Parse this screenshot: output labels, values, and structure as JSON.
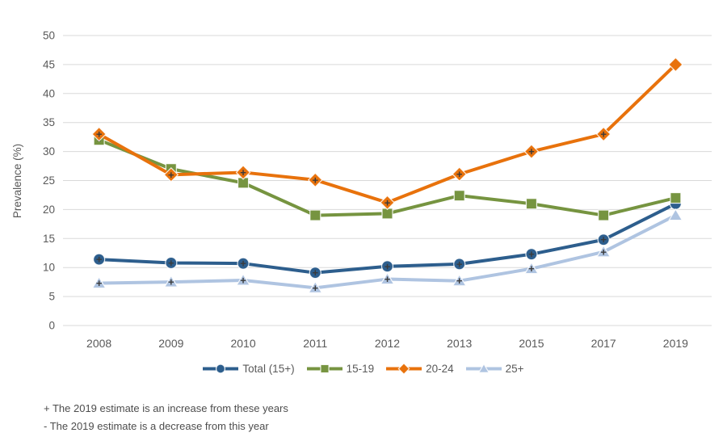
{
  "chart_data": {
    "type": "line",
    "title": "",
    "xlabel": "",
    "ylabel": "Prevalence (%)",
    "ylim": [
      0,
      50
    ],
    "ytick_step": 5,
    "grid": "horizontal",
    "legend_position": "bottom",
    "categories": [
      "2008",
      "2009",
      "2010",
      "2011",
      "2012",
      "2013",
      "2015",
      "2017",
      "2019"
    ],
    "series": [
      {
        "name": "Total (15+)",
        "color": "#2D5E8D",
        "marker": "circle",
        "values": [
          11.4,
          10.8,
          10.7,
          9.1,
          10.2,
          10.6,
          12.3,
          14.8,
          21
        ],
        "annotations": [
          "+",
          "+",
          "+",
          "+",
          "+",
          "+",
          "+",
          "+",
          ""
        ]
      },
      {
        "name": "15-19",
        "color": "#769440",
        "marker": "square",
        "values": [
          32,
          27,
          24.6,
          19,
          19.3,
          22.4,
          21,
          19,
          22
        ],
        "annotations": [
          "-",
          "",
          "",
          "",
          "",
          "",
          "",
          "",
          ""
        ]
      },
      {
        "name": "20-24",
        "color": "#E8720C",
        "marker": "diamond",
        "values": [
          33,
          26,
          26.4,
          25.1,
          21.2,
          26.1,
          30,
          33,
          45
        ],
        "annotations": [
          "+",
          "+",
          "+",
          "+",
          "+",
          "+",
          "+",
          "+",
          ""
        ]
      },
      {
        "name": "25+",
        "color": "#AFC4E1",
        "marker": "triangle",
        "values": [
          7.3,
          7.5,
          7.8,
          6.5,
          8,
          7.7,
          9.8,
          12.7,
          19
        ],
        "annotations": [
          "+",
          "+",
          "+",
          "+",
          "+",
          "+",
          "+",
          "+",
          ""
        ]
      }
    ],
    "annotation_color": "#3b3b3b",
    "gridline_color": "#d9d9d9",
    "axis_text_color": "#595959"
  },
  "footnotes": {
    "increase": "+ The 2019 estimate is an increase from these years",
    "decrease": "- The 2019 estimate is a decrease from this year"
  }
}
